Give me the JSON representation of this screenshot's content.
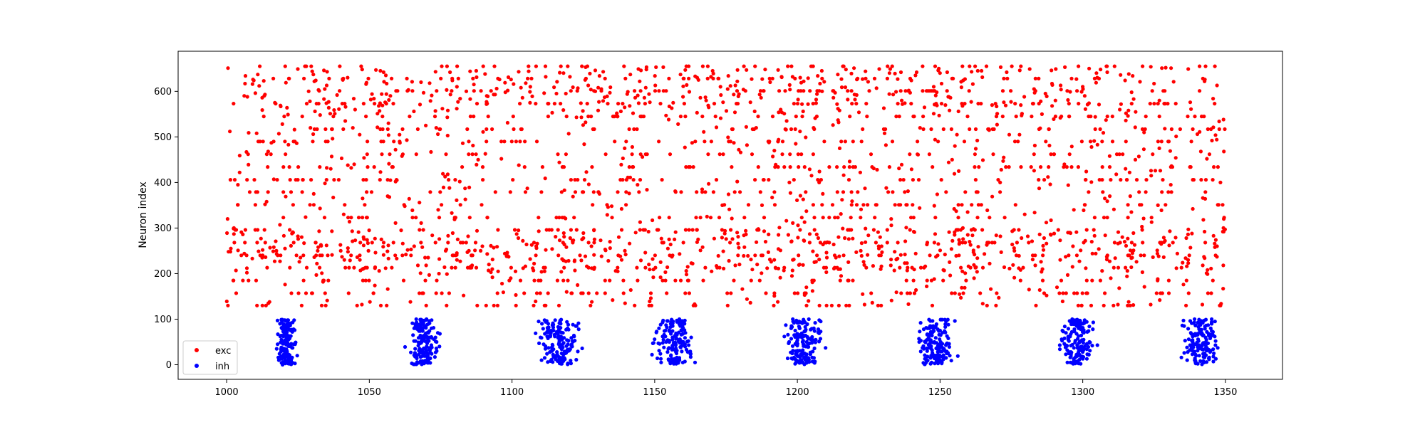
{
  "chart_data": {
    "type": "scatter",
    "title": "",
    "xlabel": "",
    "ylabel": "Neuron index",
    "xlim": [
      983,
      1370
    ],
    "ylim": [
      -32,
      688
    ],
    "xticks": [
      1000,
      1050,
      1100,
      1150,
      1200,
      1250,
      1300,
      1350
    ],
    "yticks": [
      0,
      100,
      200,
      300,
      400,
      500,
      600
    ],
    "grid": false,
    "legend": {
      "placement": "lower-left",
      "entries": [
        "exc",
        "inh"
      ]
    },
    "series": [
      {
        "name": "exc",
        "color": "#ff0000",
        "description": "excitatory spikes, neuron indices 130-655, near-uniform over time 1000-1350",
        "time_range": [
          1000,
          1350
        ],
        "index_range": [
          130,
          655
        ],
        "approx_points": 2400
      },
      {
        "name": "inh",
        "color": "#0000ff",
        "description": "inhibitory spikes, neuron indices 0-100, in periodic bursts",
        "index_range": [
          0,
          100
        ],
        "burst_centers": [
          1021,
          1069,
          1116,
          1157,
          1202,
          1249,
          1298,
          1341
        ],
        "burst_halfwidths": [
          3,
          5,
          7,
          7,
          6,
          6,
          6,
          7
        ],
        "approx_points_per_burst": 150
      }
    ]
  }
}
